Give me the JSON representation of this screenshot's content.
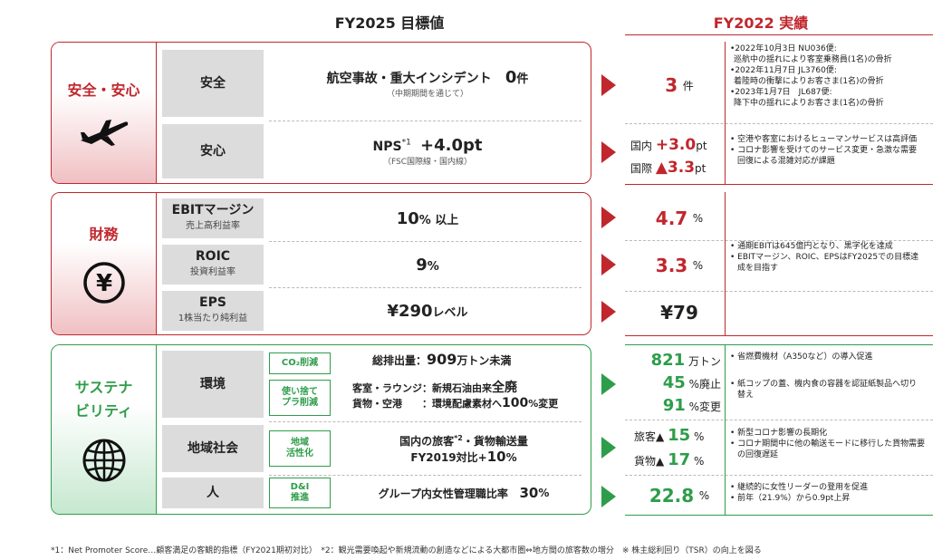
{
  "header": {
    "target": "FY2025 目標値",
    "result": "FY2022 実績"
  },
  "safety": {
    "category": "安全・安心",
    "icon": "airplane-icon",
    "rows": [
      {
        "label": "安全",
        "target_main": "航空事故・重大インシデント",
        "target_value": "0",
        "target_unit": "件",
        "target_sub": "（中期期間を通じて）",
        "result_value": "3",
        "result_unit": "件",
        "notes": [
          "2022年10月3日 NU036便:",
          "巡航中の揺れにより客室乗務員(1名)の骨折",
          "2022年11月7日 JL3760便:",
          "着陸時の衝撃によりお客さま(1名)の骨折",
          "2023年1月7日　JL687便:",
          "降下中の揺れによりお客さま(1名)の骨折"
        ]
      },
      {
        "label": "安心",
        "target_main": "NPS",
        "target_sup": "*1",
        "target_value": "+4.0pt",
        "target_sub": "（FSC国際線・国内線）",
        "result_dom_label": "国内",
        "result_dom_value": "+3.0",
        "result_dom_unit": "pt",
        "result_int_label": "国際",
        "result_int_value": "▲3.3",
        "result_int_unit": "pt",
        "notes": [
          "空港や客室におけるヒューマンサービスは高評価",
          "コロナ影響を受けてのサービス変更・急激な需要回復による混雑対応が課題"
        ]
      }
    ]
  },
  "finance": {
    "category": "財務",
    "icon": "yen-icon",
    "rows": [
      {
        "label": "EBITマージン",
        "sub": "売上高利益率",
        "target_value": "10",
        "target_unit": "% 以上",
        "result_value": "4.7",
        "result_unit": "%"
      },
      {
        "label": "ROIC",
        "sub": "投資利益率",
        "target_value": "9",
        "target_unit": "%",
        "result_value": "3.3",
        "result_unit": "%"
      },
      {
        "label": "EPS",
        "sub": "1株当たり純利益",
        "target_value": "¥290",
        "target_unit": "レベル",
        "result_value": "¥79",
        "result_unit": ""
      }
    ],
    "notes": [
      "通期EBITは645億円となり、黒字化を達成",
      "EBITマージン、ROIC、EPSはFY2025での目標達成を目指す"
    ]
  },
  "sustain": {
    "category_line1": "サステナ",
    "category_line2": "ビリティ",
    "icon": "globe-icon",
    "env": {
      "label": "環境",
      "tag1": "CO₂削減",
      "tag2_line1": "使い捨て",
      "tag2_line2": "プラ削減",
      "t1_prefix": "総排出量：",
      "t1_value": "909",
      "t1_unit": "万トン未満",
      "t2_prefix": "客室・ラウンジ：新規石油由来",
      "t2_value": "全廃",
      "t3_prefix": "貨物・空港　　：環境配慮素材へ",
      "t3_value": "100",
      "t3_unit": "%変更",
      "r1_value": "821",
      "r1_unit": "万トン",
      "r2_value": "45",
      "r2_unit": "%廃止",
      "r3_value": "91",
      "r3_unit": "%変更",
      "notes": [
        "省燃費機材（A350など）の導入促進",
        "紙コップの蓋、機内食の容器を認証紙製品へ切り替え"
      ]
    },
    "community": {
      "label": "地域社会",
      "tag_line1": "地域",
      "tag_line2": "活性化",
      "t1": "国内の旅客",
      "t1_sup": "*2",
      "t1b": "・貨物輸送量",
      "t2_prefix": "FY2019対比+",
      "t2_value": "10",
      "t2_unit": "%",
      "r1_label": "旅客▲",
      "r1_value": "15",
      "r1_unit": "%",
      "r2_label": "貨物▲",
      "r2_value": "17",
      "r2_unit": "%",
      "notes": [
        "新型コロナ影響の長期化",
        "コロナ期間中に他の輸送モードに移行した貨物需要の回復遅延"
      ]
    },
    "people": {
      "label": "人",
      "tag_line1": "D&I",
      "tag_line2": "推進",
      "target_text": "グループ内女性管理職比率",
      "target_value": "30",
      "target_unit": "%",
      "result_value": "22.8",
      "result_unit": "%",
      "notes": [
        "継続的に女性リーダーの登用を促進",
        "前年（21.9%）から0.9pt上昇"
      ]
    }
  },
  "footnote": "*1：Net Promoter Score…顧客満足の客観的指標（FY2021期初対比）　*2：観光需要喚起や新規流動の創造などによる大都市圏⇔地方間の旅客数の増分　※ 株主総利回り（TSR）の向上を図る",
  "colors": {
    "red": "#c0272d",
    "green": "#2e9d4a",
    "gray": "#dcdcdc"
  }
}
